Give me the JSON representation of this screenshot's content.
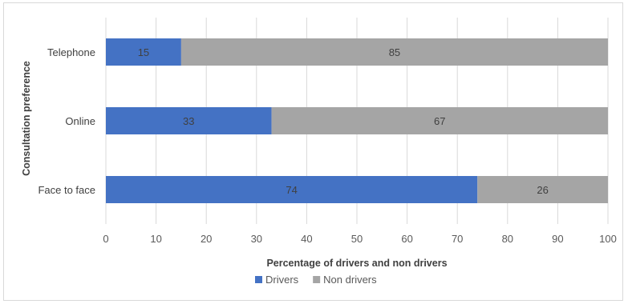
{
  "chart_data": {
    "type": "bar",
    "orientation": "horizontal",
    "stacked": true,
    "categories": [
      "Telephone",
      "Online",
      "Face to face"
    ],
    "series": [
      {
        "name": "Drivers",
        "values": [
          15,
          33,
          74
        ],
        "color": "#4472c4"
      },
      {
        "name": "Non drivers",
        "values": [
          85,
          67,
          26
        ],
        "color": "#a5a5a5"
      }
    ],
    "xlabel": "Percentage of drivers and non drivers",
    "ylabel": "Consultation preference",
    "xlim": [
      0,
      100
    ],
    "xticks": [
      0,
      10,
      20,
      30,
      40,
      50,
      60,
      70,
      80,
      90,
      100
    ],
    "grid": true,
    "legend": "bottom"
  }
}
